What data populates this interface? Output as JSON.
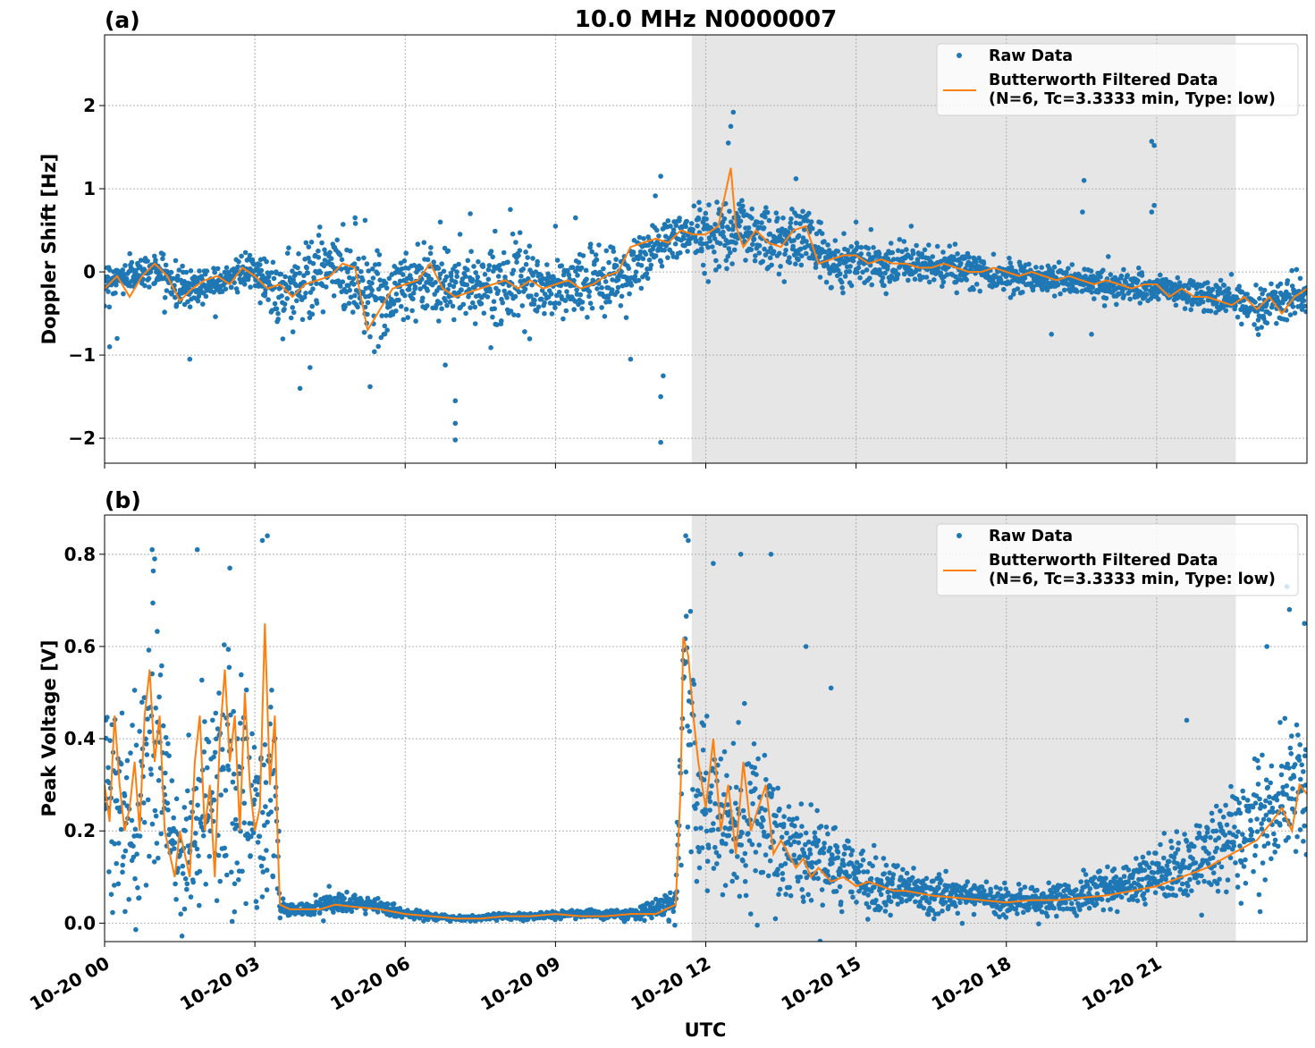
{
  "chart_data": [
    {
      "type": "scatter+line",
      "panel_label": "(a)",
      "title": "10.0 MHz N0000007",
      "ylabel": "Doppler Shift [Hz]",
      "xlabel": "",
      "xlim_hours": [
        0,
        24
      ],
      "ylim": [
        -2.3,
        2.85
      ],
      "yticks": [
        {
          "value": -2,
          "label": "−2"
        },
        {
          "value": -1,
          "label": "−1"
        },
        {
          "value": 0,
          "label": "0"
        },
        {
          "value": 1,
          "label": "1"
        },
        {
          "value": 2,
          "label": "2"
        }
      ],
      "grid": true,
      "legend_placement": "upper right",
      "legend": [
        "Raw Data",
        "Butterworth Filtered Data",
        "(N=6, Tc=3.3333 min, Type: low)"
      ],
      "shaded_interval_hours": [
        11.72,
        22.58
      ],
      "series": [
        {
          "name": "Raw Data",
          "color": "#1f77b4",
          "x_hours": [
            0,
            0.5,
            1,
            1.5,
            2,
            2.5,
            3,
            3.5,
            4,
            4.5,
            5,
            5.5,
            6,
            6.5,
            7,
            7.5,
            8,
            8.5,
            9,
            9.5,
            10,
            10.5,
            11,
            11.5,
            12,
            12.5,
            13,
            13.5,
            14,
            14.5,
            15,
            15.5,
            16,
            16.5,
            17,
            17.5,
            18,
            18.5,
            19,
            19.5,
            20,
            20.5,
            21,
            21.5,
            22,
            22.5,
            23,
            23.5,
            24
          ],
          "center": [
            -0.1,
            -0.05,
            0.05,
            -0.2,
            -0.15,
            -0.05,
            0,
            -0.25,
            -0.1,
            0.05,
            -0.1,
            -0.35,
            -0.15,
            -0.05,
            -0.2,
            -0.15,
            -0.1,
            -0.2,
            -0.2,
            -0.15,
            -0.1,
            0,
            0.3,
            0.45,
            0.45,
            0.55,
            0.45,
            0.35,
            0.45,
            0.1,
            0.15,
            0.1,
            0.1,
            0.05,
            0.05,
            0,
            -0.05,
            -0.05,
            -0.1,
            -0.1,
            -0.15,
            -0.2,
            -0.2,
            -0.25,
            -0.3,
            -0.35,
            -0.4,
            -0.35,
            -0.3
          ],
          "spread": [
            0.25,
            0.2,
            0.2,
            0.3,
            0.25,
            0.2,
            0.2,
            0.5,
            0.55,
            0.5,
            0.55,
            0.6,
            0.55,
            0.45,
            0.45,
            0.45,
            0.45,
            0.45,
            0.4,
            0.4,
            0.45,
            0.45,
            0.4,
            0.3,
            0.4,
            0.5,
            0.45,
            0.4,
            0.4,
            0.3,
            0.3,
            0.25,
            0.25,
            0.25,
            0.25,
            0.2,
            0.2,
            0.2,
            0.2,
            0.2,
            0.2,
            0.2,
            0.2,
            0.2,
            0.2,
            0.25,
            0.3,
            0.3,
            0.25
          ],
          "outliers": [
            [
              12.55,
              1.92
            ],
            [
              12.5,
              1.75
            ],
            [
              12.45,
              1.55
            ],
            [
              11.1,
              1.15
            ],
            [
              11.15,
              -1.25
            ],
            [
              11.1,
              -1.5
            ],
            [
              11.1,
              -2.05
            ],
            [
              7.0,
              -1.55
            ],
            [
              7.0,
              -1.82
            ],
            [
              7.0,
              -2.02
            ],
            [
              6.8,
              -1.12
            ],
            [
              19.55,
              1.1
            ],
            [
              19.52,
              0.72
            ],
            [
              20.9,
              1.57
            ],
            [
              20.95,
              1.52
            ],
            [
              20.95,
              0.8
            ],
            [
              20.9,
              0.72
            ],
            [
              13.8,
              1.12
            ],
            [
              5.3,
              -1.38
            ],
            [
              5.2,
              0.62
            ],
            [
              3.9,
              -1.4
            ],
            [
              4.1,
              -1.15
            ],
            [
              1.7,
              -1.05
            ],
            [
              0.1,
              -0.9
            ],
            [
              0.25,
              -0.8
            ],
            [
              10.5,
              -1.05
            ],
            [
              16.1,
              0.55
            ],
            [
              18.9,
              -0.75
            ],
            [
              19.7,
              -0.75
            ],
            [
              9.4,
              0.65
            ],
            [
              9.0,
              0.55
            ],
            [
              8.1,
              0.75
            ],
            [
              7.3,
              0.7
            ],
            [
              6.7,
              0.6
            ],
            [
              5.0,
              0.65
            ],
            [
              2.9,
              0.2
            ],
            [
              15.0,
              0.6
            ]
          ]
        },
        {
          "name": "Butterworth Filtered Data",
          "color": "#ff7f0e",
          "x_hours": [
            0,
            0.25,
            0.5,
            0.75,
            1,
            1.25,
            1.5,
            1.75,
            2,
            2.25,
            2.5,
            2.75,
            3,
            3.25,
            3.5,
            3.75,
            4,
            4.25,
            4.5,
            4.75,
            5,
            5.25,
            5.5,
            5.75,
            6,
            6.25,
            6.5,
            6.75,
            7,
            7.25,
            7.5,
            7.75,
            8,
            8.25,
            8.5,
            8.75,
            9,
            9.25,
            9.5,
            9.75,
            10,
            10.25,
            10.5,
            10.75,
            11,
            11.25,
            11.5,
            11.75,
            12,
            12.25,
            12.5,
            12.6,
            12.75,
            13,
            13.25,
            13.5,
            13.75,
            14,
            14.25,
            14.5,
            14.75,
            15,
            15.25,
            15.5,
            15.75,
            16,
            16.25,
            16.5,
            16.75,
            17,
            17.25,
            17.5,
            17.75,
            18,
            18.25,
            18.5,
            18.75,
            19,
            19.25,
            19.5,
            19.75,
            20,
            20.25,
            20.5,
            20.75,
            21,
            21.25,
            21.5,
            21.75,
            22,
            22.25,
            22.5,
            22.75,
            23,
            23.25,
            23.5,
            23.75,
            24
          ],
          "y": [
            -0.2,
            -0.05,
            -0.3,
            -0.05,
            0.1,
            -0.05,
            -0.35,
            -0.2,
            -0.1,
            -0.05,
            -0.15,
            0.05,
            -0.05,
            -0.2,
            -0.15,
            -0.3,
            -0.15,
            -0.1,
            -0.05,
            0.1,
            0.05,
            -0.7,
            -0.45,
            -0.2,
            -0.15,
            -0.1,
            0.1,
            -0.2,
            -0.3,
            -0.25,
            -0.2,
            -0.15,
            -0.1,
            -0.2,
            -0.1,
            -0.2,
            -0.15,
            -0.1,
            -0.2,
            -0.15,
            -0.05,
            0.0,
            0.3,
            0.35,
            0.4,
            0.35,
            0.5,
            0.45,
            0.45,
            0.55,
            1.25,
            0.55,
            0.3,
            0.5,
            0.35,
            0.3,
            0.5,
            0.55,
            0.1,
            0.15,
            0.2,
            0.2,
            0.1,
            0.15,
            0.1,
            0.1,
            0.05,
            0.05,
            0.1,
            0.05,
            0.0,
            0.0,
            0.05,
            0.0,
            -0.05,
            0.0,
            -0.05,
            -0.1,
            -0.05,
            -0.1,
            -0.15,
            -0.1,
            -0.15,
            -0.2,
            -0.15,
            -0.15,
            -0.3,
            -0.2,
            -0.3,
            -0.3,
            -0.35,
            -0.4,
            -0.3,
            -0.45,
            -0.3,
            -0.5,
            -0.3,
            -0.2
          ]
        }
      ]
    },
    {
      "type": "scatter+line",
      "panel_label": "(b)",
      "title": "",
      "ylabel": "Peak Voltage [V]",
      "xlabel": "UTC",
      "xlim_hours": [
        0,
        24
      ],
      "ylim": [
        -0.04,
        0.885
      ],
      "yticks": [
        {
          "value": 0,
          "label": "0.0"
        },
        {
          "value": 0.2,
          "label": "0.2"
        },
        {
          "value": 0.4,
          "label": "0.4"
        },
        {
          "value": 0.6,
          "label": "0.6"
        },
        {
          "value": 0.8,
          "label": "0.8"
        }
      ],
      "xticks": [
        {
          "value": 0,
          "label": "10-20 00"
        },
        {
          "value": 3,
          "label": "10-20 03"
        },
        {
          "value": 6,
          "label": "10-20 06"
        },
        {
          "value": 9,
          "label": "10-20 09"
        },
        {
          "value": 12,
          "label": "10-20 12"
        },
        {
          "value": 15,
          "label": "10-20 15"
        },
        {
          "value": 18,
          "label": "10-20 18"
        },
        {
          "value": 21,
          "label": "10-20 21"
        }
      ],
      "grid": true,
      "legend_placement": "upper right",
      "legend": [
        "Raw Data",
        "Butterworth Filtered Data",
        "(N=6, Tc=3.3333 min, Type: low)"
      ],
      "shaded_interval_hours": [
        11.72,
        22.58
      ],
      "series": [
        {
          "name": "Raw Data",
          "color": "#1f77b4",
          "x_hours": [
            0,
            0.5,
            1,
            1.5,
            2,
            2.5,
            3,
            3.4,
            3.5,
            4,
            4.5,
            5,
            5.5,
            6,
            6.5,
            7,
            7.5,
            8,
            8.5,
            9,
            9.5,
            10,
            10.5,
            11,
            11.4,
            11.55,
            11.8,
            12,
            12.5,
            13,
            13.5,
            14,
            14.5,
            15,
            15.5,
            16,
            16.5,
            17,
            17.5,
            18,
            18.5,
            19,
            19.5,
            20,
            20.5,
            21,
            21.5,
            22,
            22.5,
            23,
            23.5,
            24
          ],
          "center": [
            0.3,
            0.2,
            0.4,
            0.12,
            0.28,
            0.3,
            0.25,
            0.3,
            0.03,
            0.03,
            0.04,
            0.04,
            0.035,
            0.02,
            0.015,
            0.01,
            0.012,
            0.015,
            0.015,
            0.018,
            0.02,
            0.018,
            0.02,
            0.03,
            0.04,
            0.5,
            0.3,
            0.25,
            0.22,
            0.2,
            0.17,
            0.14,
            0.12,
            0.1,
            0.08,
            0.07,
            0.065,
            0.06,
            0.055,
            0.05,
            0.05,
            0.055,
            0.06,
            0.07,
            0.08,
            0.1,
            0.12,
            0.15,
            0.18,
            0.22,
            0.26,
            0.3
          ],
          "spread": [
            0.25,
            0.2,
            0.35,
            0.12,
            0.3,
            0.3,
            0.3,
            0.3,
            0.02,
            0.015,
            0.025,
            0.02,
            0.02,
            0.01,
            0.008,
            0.006,
            0.006,
            0.008,
            0.008,
            0.01,
            0.01,
            0.01,
            0.012,
            0.02,
            0.04,
            0.3,
            0.25,
            0.22,
            0.2,
            0.2,
            0.15,
            0.12,
            0.1,
            0.08,
            0.06,
            0.05,
            0.045,
            0.04,
            0.04,
            0.035,
            0.035,
            0.04,
            0.045,
            0.05,
            0.06,
            0.07,
            0.08,
            0.1,
            0.12,
            0.14,
            0.16,
            0.2
          ],
          "outliers": [
            [
              0.95,
              0.81
            ],
            [
              1.0,
              0.79
            ],
            [
              1.85,
              0.81
            ],
            [
              2.5,
              0.77
            ],
            [
              3.15,
              0.83
            ],
            [
              3.25,
              0.84
            ],
            [
              11.6,
              0.84
            ],
            [
              11.65,
              0.83
            ],
            [
              12.7,
              0.8
            ],
            [
              13.3,
              0.8
            ],
            [
              12.15,
              0.78
            ],
            [
              14.0,
              0.6
            ],
            [
              14.5,
              0.51
            ],
            [
              23.6,
              0.73
            ],
            [
              23.65,
              0.68
            ],
            [
              23.95,
              0.65
            ],
            [
              21.6,
              0.44
            ],
            [
              23.2,
              0.6
            ]
          ]
        },
        {
          "name": "Butterworth Filtered Data",
          "color": "#ff7f0e",
          "x_hours": [
            0,
            0.1,
            0.2,
            0.3,
            0.4,
            0.5,
            0.6,
            0.7,
            0.8,
            0.9,
            1.0,
            1.1,
            1.2,
            1.3,
            1.4,
            1.5,
            1.6,
            1.7,
            1.8,
            1.9,
            2.0,
            2.1,
            2.2,
            2.3,
            2.4,
            2.5,
            2.6,
            2.7,
            2.8,
            2.9,
            3.0,
            3.1,
            3.2,
            3.3,
            3.4,
            3.45,
            3.5,
            3.7,
            4.0,
            4.3,
            4.6,
            5.0,
            5.5,
            6.0,
            6.5,
            7.0,
            7.5,
            8.0,
            8.5,
            9.0,
            9.5,
            10.0,
            10.5,
            11.0,
            11.4,
            11.5,
            11.55,
            11.65,
            11.75,
            11.85,
            12.0,
            12.15,
            12.3,
            12.45,
            12.6,
            12.75,
            12.9,
            13.05,
            13.2,
            13.35,
            13.5,
            13.65,
            13.8,
            13.95,
            14.1,
            14.25,
            14.5,
            14.75,
            15.0,
            15.25,
            15.5,
            15.75,
            16.0,
            16.5,
            17.0,
            17.5,
            18.0,
            18.5,
            19.0,
            19.5,
            20.0,
            20.5,
            21.0,
            21.5,
            22.0,
            22.5,
            23.0,
            23.3,
            23.5,
            23.7,
            23.85,
            24
          ],
          "y": [
            0.3,
            0.22,
            0.45,
            0.3,
            0.2,
            0.25,
            0.35,
            0.2,
            0.45,
            0.55,
            0.35,
            0.45,
            0.2,
            0.15,
            0.1,
            0.2,
            0.15,
            0.1,
            0.35,
            0.45,
            0.2,
            0.3,
            0.1,
            0.4,
            0.55,
            0.35,
            0.45,
            0.2,
            0.5,
            0.3,
            0.2,
            0.25,
            0.65,
            0.3,
            0.45,
            0.2,
            0.04,
            0.03,
            0.03,
            0.03,
            0.04,
            0.035,
            0.03,
            0.02,
            0.015,
            0.01,
            0.01,
            0.015,
            0.015,
            0.02,
            0.015,
            0.015,
            0.02,
            0.02,
            0.04,
            0.3,
            0.62,
            0.58,
            0.45,
            0.35,
            0.25,
            0.4,
            0.2,
            0.3,
            0.15,
            0.35,
            0.2,
            0.25,
            0.3,
            0.15,
            0.18,
            0.15,
            0.12,
            0.14,
            0.1,
            0.12,
            0.09,
            0.1,
            0.08,
            0.09,
            0.08,
            0.07,
            0.07,
            0.06,
            0.055,
            0.05,
            0.045,
            0.05,
            0.05,
            0.055,
            0.06,
            0.07,
            0.08,
            0.1,
            0.12,
            0.15,
            0.18,
            0.22,
            0.25,
            0.2,
            0.3,
            0.28
          ]
        }
      ]
    }
  ]
}
